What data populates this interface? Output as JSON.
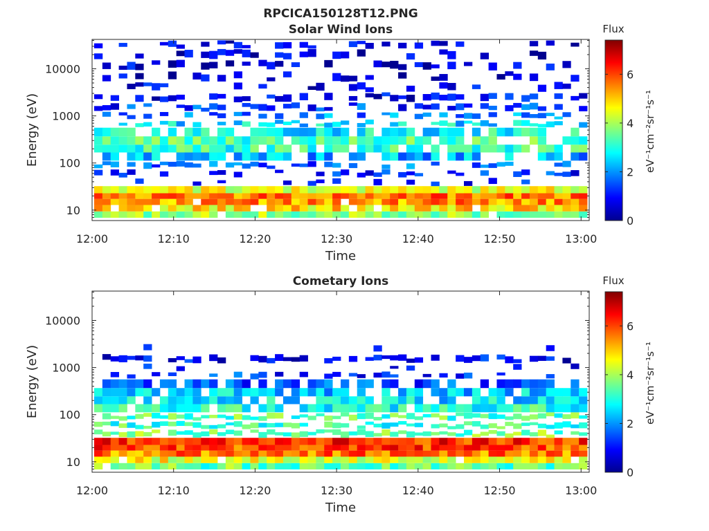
{
  "figure_title": "RPCICA150128T12.PNG",
  "colors": {
    "colormap": [
      "#00008f",
      "#0000ff",
      "#0080ff",
      "#00ffff",
      "#80ff80",
      "#ffff00",
      "#ff8000",
      "#ff0000",
      "#800000"
    ],
    "axes": "#262626",
    "background": "#ffffff"
  },
  "chart_data": [
    {
      "type": "heatmap",
      "title": "Solar Wind Ions",
      "xlabel": "Time",
      "ylabel": "Energy (eV)",
      "xticks": [
        "12:00",
        "12:10",
        "12:20",
        "12:30",
        "12:40",
        "12:50",
        "13:00"
      ],
      "xlim": [
        "12:00",
        "13:01"
      ],
      "ylim": [
        6,
        42000
      ],
      "yscale": "log",
      "yticks": [
        10,
        100,
        1000,
        10000
      ],
      "ytick_labels": [
        "10",
        "100",
        "1000",
        "10000"
      ],
      "colorbar": {
        "title": "Flux",
        "label": "eV⁻¹cm⁻²sr⁻¹s⁻¹",
        "range": [
          0,
          7.4
        ],
        "ticks": [
          0,
          2,
          4,
          6
        ],
        "tick_labels": [
          "0",
          "2",
          "4",
          "6"
        ]
      },
      "profile": {
        "energy_bands_eV": [
          8,
          11,
          15,
          20,
          26,
          40,
          60,
          90,
          140,
          200,
          300,
          450,
          700,
          1000,
          1500,
          2500,
          4000,
          7000,
          12000,
          20000,
          35000
        ],
        "typical_flux": [
          3.8,
          4.8,
          5.4,
          5.6,
          4.4,
          0.9,
          1.2,
          1.6,
          2.2,
          3.1,
          3.3,
          2.8,
          2.6,
          1.8,
          1.3,
          0.8,
          0.7,
          0.6,
          0.6,
          0.6,
          0.6
        ],
        "coverage": [
          0.9,
          0.95,
          0.98,
          1.0,
          1.0,
          0.25,
          0.4,
          0.5,
          0.65,
          0.85,
          0.85,
          0.75,
          0.7,
          0.65,
          0.6,
          0.45,
          0.4,
          0.4,
          0.35,
          0.35,
          0.35
        ]
      }
    },
    {
      "type": "heatmap",
      "title": "Cometary Ions",
      "xlabel": "Time",
      "ylabel": "Energy (eV)",
      "xticks": [
        "12:00",
        "12:10",
        "12:20",
        "12:30",
        "12:40",
        "12:50",
        "13:00"
      ],
      "xlim": [
        "12:00",
        "13:01"
      ],
      "ylim": [
        6,
        42000
      ],
      "yscale": "log",
      "yticks": [
        10,
        100,
        1000,
        10000
      ],
      "ytick_labels": [
        "10",
        "100",
        "1000",
        "10000"
      ],
      "colorbar": {
        "title": "Flux",
        "label": "eV⁻¹cm⁻²sr⁻¹s⁻¹",
        "range": [
          0,
          7.4
        ],
        "ticks": [
          0,
          2,
          4,
          6
        ],
        "tick_labels": [
          "0",
          "2",
          "4",
          "6"
        ]
      },
      "profile": {
        "energy_bands_eV": [
          8,
          11,
          15,
          20,
          26,
          40,
          60,
          90,
          140,
          200,
          300,
          450,
          700,
          1000,
          1500,
          2500,
          4000,
          7000,
          12000,
          20000,
          35000
        ],
        "typical_flux": [
          3.5,
          4.5,
          5.6,
          6.0,
          6.2,
          3.6,
          3.2,
          3.4,
          3.0,
          2.6,
          2.4,
          1.4,
          1.2,
          0.9,
          0.8,
          0.8,
          0.8,
          0.8,
          0.8,
          0.8,
          0.8
        ],
        "coverage": [
          0.9,
          0.95,
          1.0,
          1.0,
          1.0,
          0.95,
          0.95,
          0.95,
          0.9,
          0.85,
          0.85,
          0.6,
          0.35,
          0.05,
          0.6,
          0.02,
          0.0,
          0.02,
          0.02,
          0.0,
          0.0
        ]
      }
    }
  ]
}
